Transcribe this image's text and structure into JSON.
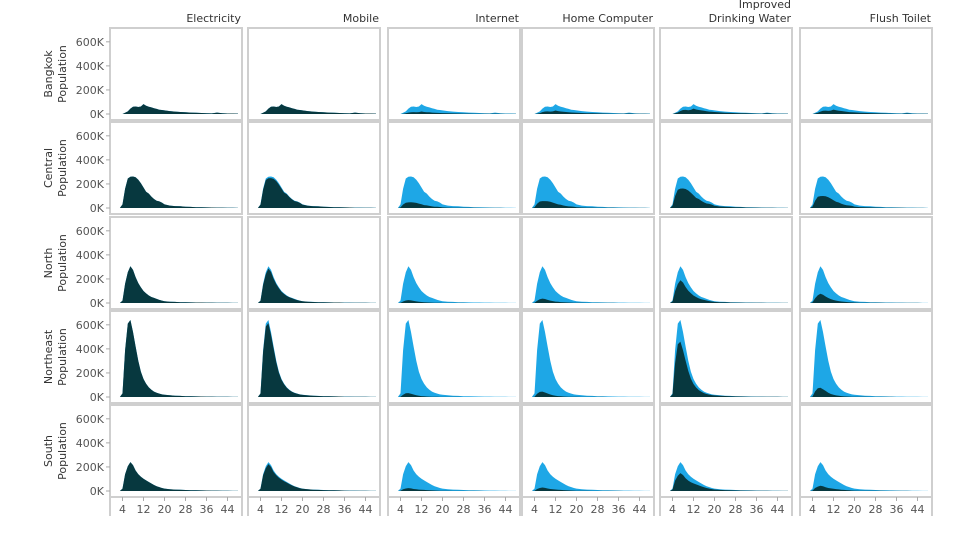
{
  "chart_data": {
    "type": "area",
    "layout": "small-multiples",
    "columns": [
      "Electricity",
      "Mobile",
      "Internet",
      "Home Computer",
      "Improved Drinking Water",
      "Flush Toilet"
    ],
    "column_label_lines": [
      [
        "Electricity"
      ],
      [
        "Mobile"
      ],
      [
        "Internet"
      ],
      [
        "Home Computer"
      ],
      [
        "Improved",
        "Drinking Water"
      ],
      [
        "Flush Toilet"
      ]
    ],
    "rows": [
      {
        "region": "Bangkok",
        "ylabel_lines": [
          "Bangkok",
          "Population"
        ]
      },
      {
        "region": "Central",
        "ylabel_lines": [
          "Central",
          "Population"
        ]
      },
      {
        "region": "North",
        "ylabel_lines": [
          "North",
          "Population"
        ]
      },
      {
        "region": "Northeast",
        "ylabel_lines": [
          "Northeast",
          "Population"
        ]
      },
      {
        "region": "South",
        "ylabel_lines": [
          "South",
          "Population"
        ]
      }
    ],
    "x": [
      1,
      2,
      3,
      4,
      5,
      6,
      7,
      8,
      9,
      10,
      11,
      12,
      13,
      14,
      15,
      16,
      17,
      18,
      19,
      20,
      22,
      24,
      26,
      28,
      30,
      32,
      34,
      36,
      38,
      40,
      42,
      44,
      46,
      48
    ],
    "xlim": [
      0,
      48
    ],
    "xticks": [
      4,
      12,
      20,
      28,
      36,
      44
    ],
    "xtick_labels": [
      "4",
      "12",
      "20",
      "28",
      "36",
      "44"
    ],
    "ylim": [
      0,
      640000
    ],
    "yticks": [
      0,
      200000,
      400000,
      600000
    ],
    "ytick_labels": [
      "0K",
      "200K",
      "400K",
      "600K"
    ],
    "total_color": "#1ea7e6",
    "with_color": "#07383f",
    "totals": {
      "Bangkok": [
        0,
        0,
        0,
        0,
        10000,
        22000,
        45000,
        60000,
        62000,
        58000,
        62000,
        82000,
        68000,
        60000,
        55000,
        48000,
        42000,
        36000,
        33000,
        30000,
        24000,
        20000,
        17000,
        14000,
        12000,
        10000,
        8000,
        6000,
        5000,
        12000,
        6000,
        4000,
        4000,
        3000
      ],
      "Central": [
        0,
        0,
        0,
        30000,
        160000,
        245000,
        260000,
        262000,
        255000,
        235000,
        205000,
        170000,
        135000,
        120000,
        95000,
        75000,
        60000,
        55000,
        45000,
        30000,
        20000,
        16000,
        14000,
        11000,
        9000,
        7000,
        6000,
        5000,
        4000,
        3000,
        3000,
        2000,
        2000,
        1000
      ],
      "North": [
        0,
        0,
        0,
        20000,
        160000,
        255000,
        305000,
        275000,
        215000,
        165000,
        130000,
        100000,
        80000,
        62000,
        50000,
        42000,
        34000,
        26000,
        20000,
        15000,
        11000,
        9000,
        7000,
        6000,
        5000,
        4000,
        4000,
        3000,
        3000,
        2000,
        2000,
        2000,
        1000,
        1000
      ],
      "Northeast": [
        0,
        0,
        0,
        30000,
        390000,
        610000,
        640000,
        540000,
        420000,
        300000,
        210000,
        150000,
        110000,
        80000,
        60000,
        45000,
        35000,
        28000,
        22000,
        18000,
        14000,
        11000,
        9000,
        7000,
        6000,
        5000,
        4000,
        3000,
        3000,
        2000,
        2000,
        2000,
        1000,
        1000
      ],
      "South": [
        0,
        0,
        0,
        20000,
        140000,
        205000,
        240000,
        215000,
        170000,
        140000,
        118000,
        102000,
        88000,
        75000,
        62000,
        50000,
        40000,
        32000,
        25000,
        20000,
        15000,
        12000,
        10000,
        8000,
        7000,
        6000,
        5000,
        4000,
        3000,
        3000,
        2000,
        2000,
        1000,
        1000
      ]
    },
    "shares": {
      "Electricity": [
        1.0,
        1.0,
        1.0,
        1.0,
        1.0
      ],
      "Mobile": [
        1.0,
        0.95,
        0.94,
        0.96,
        0.93
      ],
      "Internet": [
        0.25,
        0.18,
        0.08,
        0.05,
        0.1
      ],
      "Home Computer": [
        0.35,
        0.22,
        0.12,
        0.07,
        0.12
      ],
      "Improved Drinking Water": [
        0.55,
        0.62,
        0.62,
        0.72,
        0.62
      ],
      "Flush Toilet": [
        0.45,
        0.38,
        0.25,
        0.12,
        0.18
      ]
    }
  }
}
